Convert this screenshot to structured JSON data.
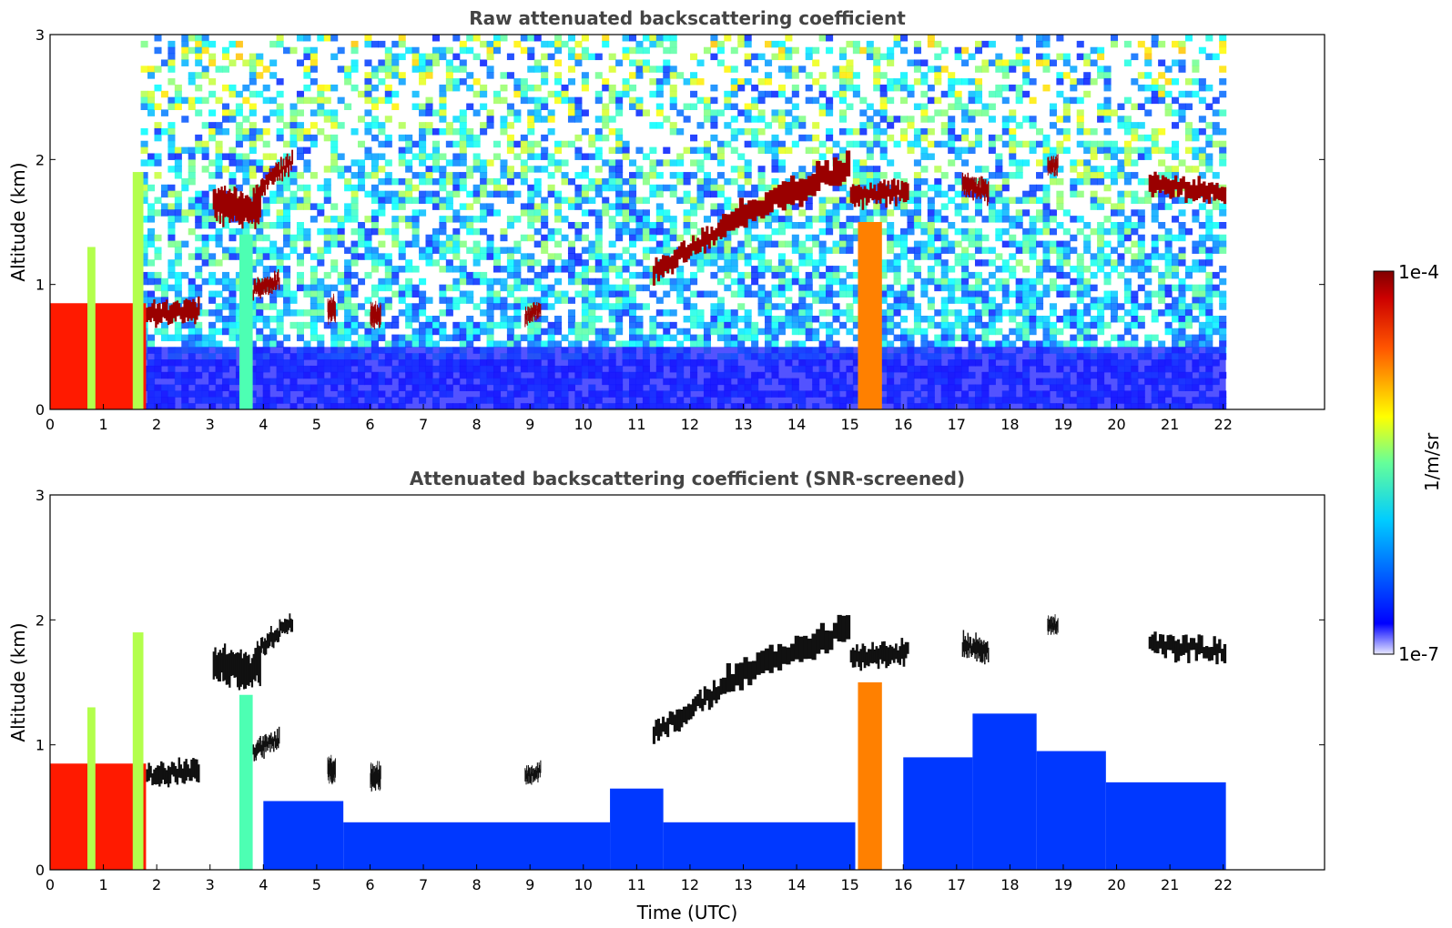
{
  "chart_data": [
    {
      "type": "heatmap",
      "title": "Raw attenuated backscattering coefficient",
      "xlabel": "",
      "ylabel": "Altitude (km)",
      "xlim": [
        0,
        23.9
      ],
      "ylim": [
        0,
        3
      ],
      "x_ticks": [
        0,
        1,
        2,
        3,
        4,
        5,
        6,
        7,
        8,
        9,
        10,
        11,
        12,
        13,
        14,
        15,
        16,
        17,
        18,
        19,
        20,
        21,
        22
      ],
      "y_ticks": [
        0,
        1,
        2,
        3
      ],
      "data_end_time": 22.05,
      "noise_fill": "full",
      "features": [
        {
          "kind": "low_aerosol_layer",
          "t0": 0.0,
          "t1": 1.8,
          "top_km": 0.85,
          "level": 0.85
        },
        {
          "kind": "column",
          "t0": 0.7,
          "t1": 0.85,
          "top_km": 1.3,
          "level": 0.55
        },
        {
          "kind": "column",
          "t0": 1.55,
          "t1": 1.75,
          "top_km": 1.9,
          "level": 0.55
        },
        {
          "kind": "column",
          "t0": 3.55,
          "t1": 3.8,
          "top_km": 1.4,
          "level": 0.45
        },
        {
          "kind": "column",
          "t0": 15.15,
          "t1": 15.6,
          "top_km": 1.5,
          "level": 0.75
        },
        {
          "kind": "cloud",
          "t0": 1.8,
          "t1": 2.8,
          "alt0_km": 0.75,
          "alt1_km": 0.8,
          "thickness_km": 0.15
        },
        {
          "kind": "cloud",
          "t0": 3.05,
          "t1": 3.95,
          "alt0_km": 1.65,
          "alt1_km": 1.6,
          "thickness_km": 0.25
        },
        {
          "kind": "cloud",
          "t0": 3.85,
          "t1": 4.55,
          "alt0_km": 1.75,
          "alt1_km": 2.0,
          "thickness_km": 0.12
        },
        {
          "kind": "cloud",
          "t0": 3.8,
          "t1": 4.3,
          "alt0_km": 0.95,
          "alt1_km": 1.05,
          "thickness_km": 0.12
        },
        {
          "kind": "cloud",
          "t0": 5.2,
          "t1": 5.35,
          "alt0_km": 0.8,
          "alt1_km": 0.8,
          "thickness_km": 0.15
        },
        {
          "kind": "cloud",
          "t0": 6.0,
          "t1": 6.2,
          "alt0_km": 0.75,
          "alt1_km": 0.75,
          "thickness_km": 0.15
        },
        {
          "kind": "cloud",
          "t0": 8.9,
          "t1": 9.2,
          "alt0_km": 0.75,
          "alt1_km": 0.8,
          "thickness_km": 0.1
        },
        {
          "kind": "cloud",
          "t0": 11.3,
          "t1": 12.6,
          "alt0_km": 1.1,
          "alt1_km": 1.45,
          "thickness_km": 0.15
        },
        {
          "kind": "cloud",
          "t0": 12.6,
          "t1": 15.0,
          "alt0_km": 1.5,
          "alt1_km": 1.95,
          "thickness_km": 0.2
        },
        {
          "kind": "cloud",
          "t0": 15.0,
          "t1": 16.1,
          "alt0_km": 1.7,
          "alt1_km": 1.75,
          "thickness_km": 0.15
        },
        {
          "kind": "cloud",
          "t0": 17.1,
          "t1": 17.6,
          "alt0_km": 1.8,
          "alt1_km": 1.75,
          "thickness_km": 0.15
        },
        {
          "kind": "cloud",
          "t0": 18.7,
          "t1": 18.9,
          "alt0_km": 1.95,
          "alt1_km": 1.95,
          "thickness_km": 0.1
        },
        {
          "kind": "cloud",
          "t0": 20.6,
          "t1": 22.05,
          "alt0_km": 1.8,
          "alt1_km": 1.75,
          "thickness_km": 0.15
        }
      ]
    },
    {
      "type": "heatmap",
      "title": "Attenuated backscattering coefficient (SNR-screened)",
      "xlabel": "Time (UTC)",
      "ylabel": "Altitude (km)",
      "xlim": [
        0,
        23.9
      ],
      "ylim": [
        0,
        3
      ],
      "x_ticks": [
        0,
        1,
        2,
        3,
        4,
        5,
        6,
        7,
        8,
        9,
        10,
        11,
        12,
        13,
        14,
        15,
        16,
        17,
        18,
        19,
        20,
        21,
        22
      ],
      "y_ticks": [
        0,
        1,
        2,
        3
      ],
      "data_end_time": 22.05,
      "noise_fill": "screened",
      "boundary_layer": [
        {
          "t0": 4.0,
          "t1": 5.5,
          "top_km": 0.55
        },
        {
          "t0": 5.5,
          "t1": 10.5,
          "top_km": 0.38
        },
        {
          "t0": 10.5,
          "t1": 11.5,
          "top_km": 0.65
        },
        {
          "t0": 11.5,
          "t1": 15.1,
          "top_km": 0.38
        },
        {
          "t0": 16.0,
          "t1": 17.3,
          "top_km": 0.9
        },
        {
          "t0": 17.3,
          "t1": 18.5,
          "top_km": 1.25
        },
        {
          "t0": 18.5,
          "t1": 19.8,
          "top_km": 0.95
        },
        {
          "t0": 19.8,
          "t1": 22.05,
          "top_km": 0.7
        }
      ]
    }
  ],
  "colorbar": {
    "label": "1/m/sr",
    "max_label": "1e-4",
    "min_label": "1e-7",
    "colormap": "jet"
  }
}
